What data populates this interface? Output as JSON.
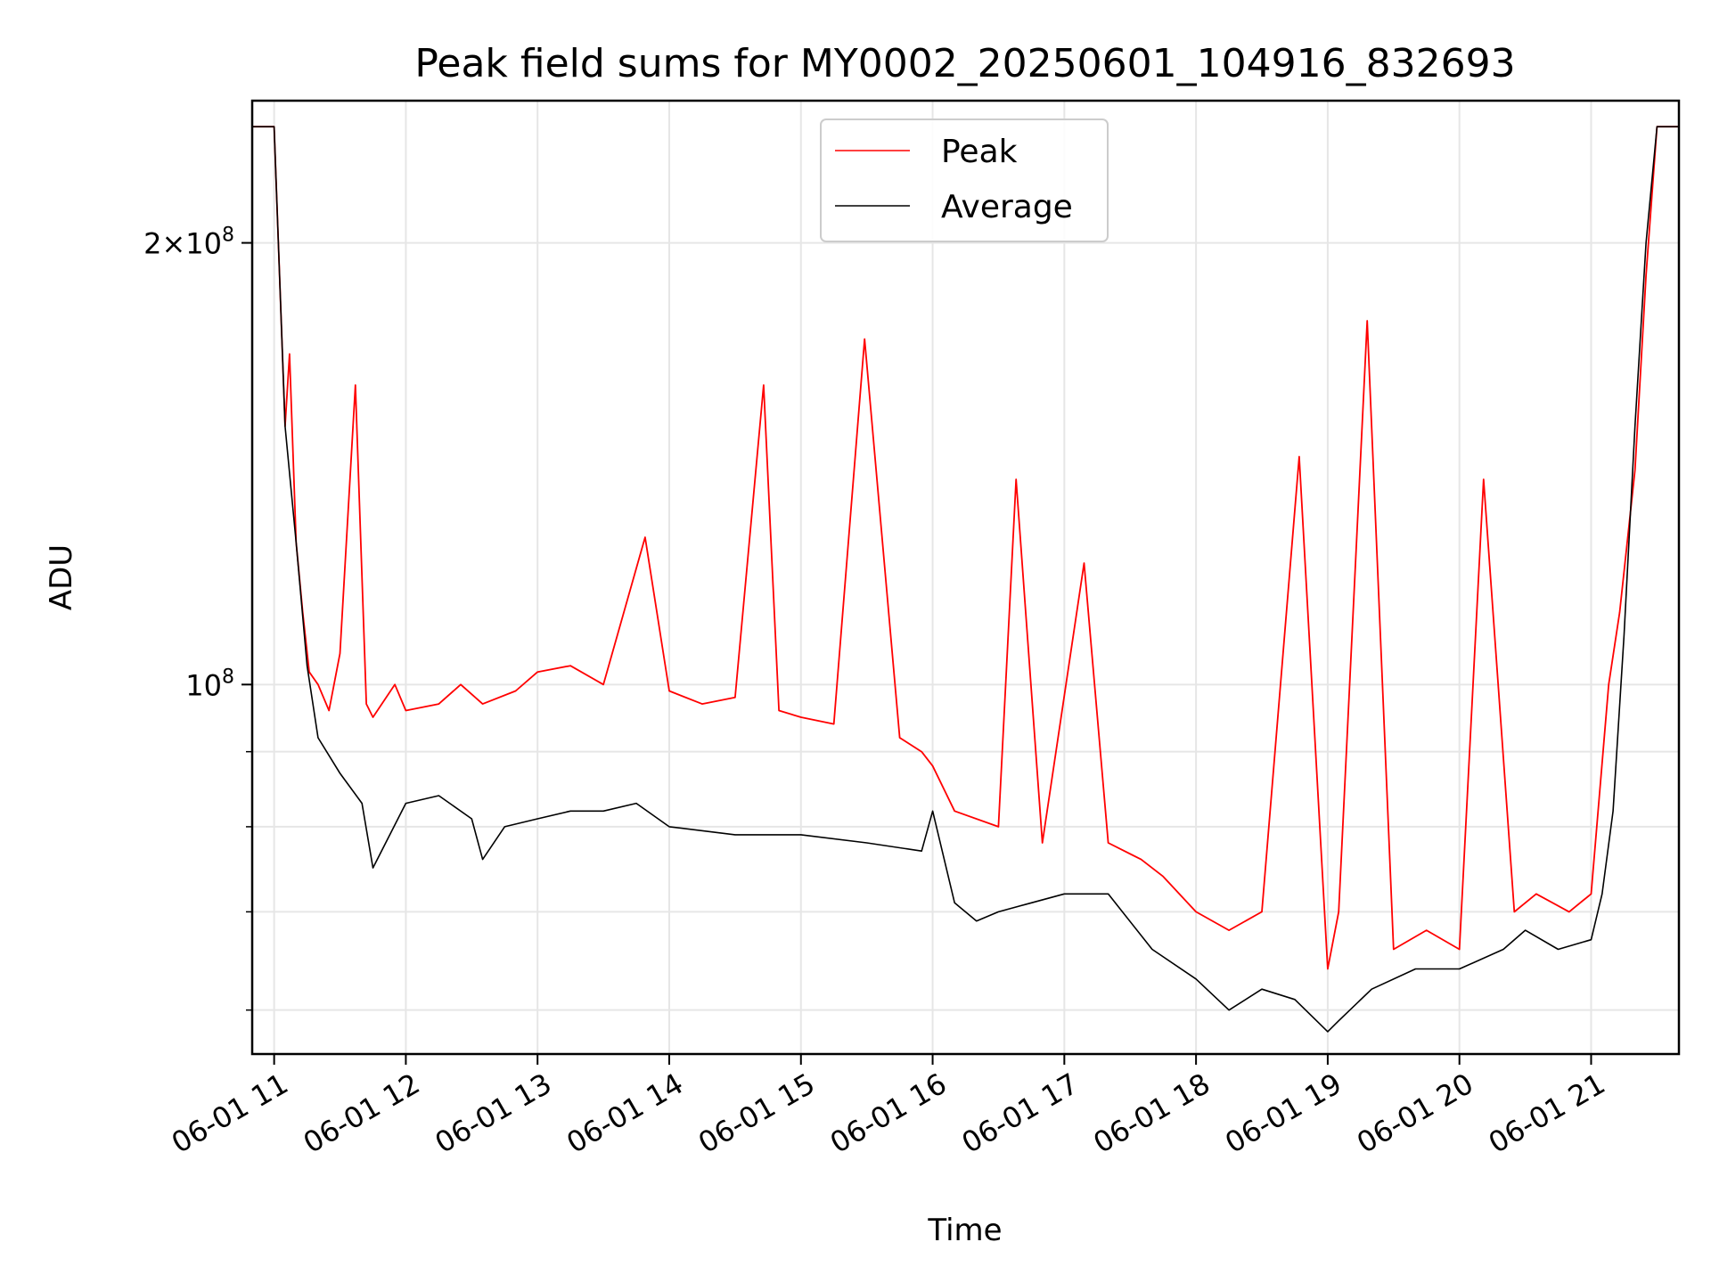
{
  "chart_data": {
    "type": "line",
    "title": "Peak field sums for MY0002_20250601_104916_832693",
    "xlabel": "Time",
    "ylabel": "ADU",
    "x_scale": "time",
    "y_scale": "log",
    "xlim": [
      "2025-06-01 10:50",
      "2025-06-01 21:40"
    ],
    "ylim": [
      56000000,
      250000000
    ],
    "grid": true,
    "legend_position": "top-center",
    "x_ticks": [
      {
        "value": "2025-06-01 11:00",
        "label": "06-01 11"
      },
      {
        "value": "2025-06-01 12:00",
        "label": "06-01 12"
      },
      {
        "value": "2025-06-01 13:00",
        "label": "06-01 13"
      },
      {
        "value": "2025-06-01 14:00",
        "label": "06-01 14"
      },
      {
        "value": "2025-06-01 15:00",
        "label": "06-01 15"
      },
      {
        "value": "2025-06-01 16:00",
        "label": "06-01 16"
      },
      {
        "value": "2025-06-01 17:00",
        "label": "06-01 17"
      },
      {
        "value": "2025-06-01 18:00",
        "label": "06-01 18"
      },
      {
        "value": "2025-06-01 19:00",
        "label": "06-01 19"
      },
      {
        "value": "2025-06-01 20:00",
        "label": "06-01 20"
      },
      {
        "value": "2025-06-01 21:00",
        "label": "06-01 21"
      }
    ],
    "y_major_ticks": [
      {
        "value": 100000000,
        "mantissa": "",
        "exponent": "8"
      },
      {
        "value": 200000000,
        "mantissa": "2",
        "exponent": "8"
      }
    ],
    "y_minor_ticks": [
      60000000,
      70000000,
      80000000,
      90000000
    ],
    "series": [
      {
        "name": "Peak",
        "color": "#ff0000",
        "x": [
          "2025-06-01 10:50",
          "2025-06-01 11:00",
          "2025-06-01 11:05",
          "2025-06-01 11:07",
          "2025-06-01 11:10",
          "2025-06-01 11:13",
          "2025-06-01 11:16",
          "2025-06-01 11:20",
          "2025-06-01 11:25",
          "2025-06-01 11:30",
          "2025-06-01 11:37",
          "2025-06-01 11:42",
          "2025-06-01 11:45",
          "2025-06-01 11:55",
          "2025-06-01 12:00",
          "2025-06-01 12:15",
          "2025-06-01 12:25",
          "2025-06-01 12:35",
          "2025-06-01 12:50",
          "2025-06-01 13:00",
          "2025-06-01 13:15",
          "2025-06-01 13:30",
          "2025-06-01 13:49",
          "2025-06-01 14:00",
          "2025-06-01 14:15",
          "2025-06-01 14:30",
          "2025-06-01 14:43",
          "2025-06-01 14:50",
          "2025-06-01 15:00",
          "2025-06-01 15:15",
          "2025-06-01 15:29",
          "2025-06-01 15:45",
          "2025-06-01 15:55",
          "2025-06-01 16:00",
          "2025-06-01 16:10",
          "2025-06-01 16:30",
          "2025-06-01 16:38",
          "2025-06-01 16:50",
          "2025-06-01 17:09",
          "2025-06-01 17:20",
          "2025-06-01 17:35",
          "2025-06-01 17:45",
          "2025-06-01 18:00",
          "2025-06-01 18:15",
          "2025-06-01 18:30",
          "2025-06-01 18:47",
          "2025-06-01 19:00",
          "2025-06-01 19:05",
          "2025-06-01 19:18",
          "2025-06-01 19:30",
          "2025-06-01 19:45",
          "2025-06-01 20:00",
          "2025-06-01 20:11",
          "2025-06-01 20:25",
          "2025-06-01 20:35",
          "2025-06-01 20:50",
          "2025-06-01 21:00",
          "2025-06-01 21:08",
          "2025-06-01 21:13",
          "2025-06-01 21:20",
          "2025-06-01 21:25",
          "2025-06-01 21:30",
          "2025-06-01 21:40"
        ],
        "values": [
          240000000,
          240000000,
          150000000,
          168000000,
          125000000,
          112000000,
          102000000,
          100000000,
          96000000,
          105000000,
          160000000,
          97000000,
          95000000,
          100000000,
          96000000,
          97000000,
          100000000,
          97000000,
          99000000,
          102000000,
          103000000,
          100000000,
          126000000,
          99000000,
          97000000,
          98000000,
          160000000,
          96000000,
          95000000,
          94000000,
          172000000,
          92000000,
          90000000,
          88000000,
          82000000,
          80000000,
          138000000,
          78000000,
          121000000,
          78000000,
          76000000,
          74000000,
          70000000,
          68000000,
          70000000,
          143000000,
          64000000,
          70000000,
          177000000,
          66000000,
          68000000,
          66000000,
          138000000,
          70000000,
          72000000,
          70000000,
          72000000,
          100000000,
          112000000,
          140000000,
          190000000,
          240000000,
          240000000
        ]
      },
      {
        "name": "Average",
        "color": "#000000",
        "x": [
          "2025-06-01 10:50",
          "2025-06-01 11:00",
          "2025-06-01 11:05",
          "2025-06-01 11:10",
          "2025-06-01 11:15",
          "2025-06-01 11:20",
          "2025-06-01 11:30",
          "2025-06-01 11:40",
          "2025-06-01 11:45",
          "2025-06-01 12:00",
          "2025-06-01 12:15",
          "2025-06-01 12:30",
          "2025-06-01 12:35",
          "2025-06-01 12:45",
          "2025-06-01 13:00",
          "2025-06-01 13:15",
          "2025-06-01 13:30",
          "2025-06-01 13:45",
          "2025-06-01 14:00",
          "2025-06-01 14:30",
          "2025-06-01 15:00",
          "2025-06-01 15:30",
          "2025-06-01 15:55",
          "2025-06-01 16:00",
          "2025-06-01 16:10",
          "2025-06-01 16:20",
          "2025-06-01 16:30",
          "2025-06-01 16:45",
          "2025-06-01 17:00",
          "2025-06-01 17:20",
          "2025-06-01 17:40",
          "2025-06-01 18:00",
          "2025-06-01 18:15",
          "2025-06-01 18:30",
          "2025-06-01 18:45",
          "2025-06-01 19:00",
          "2025-06-01 19:05",
          "2025-06-01 19:20",
          "2025-06-01 19:40",
          "2025-06-01 20:00",
          "2025-06-01 20:20",
          "2025-06-01 20:30",
          "2025-06-01 20:45",
          "2025-06-01 21:00",
          "2025-06-01 21:05",
          "2025-06-01 21:10",
          "2025-06-01 21:15",
          "2025-06-01 21:20",
          "2025-06-01 21:25",
          "2025-06-01 21:30",
          "2025-06-01 21:40"
        ],
        "values": [
          240000000,
          240000000,
          150000000,
          125000000,
          103000000,
          92000000,
          87000000,
          83000000,
          75000000,
          83000000,
          84000000,
          81000000,
          76000000,
          80000000,
          81000000,
          82000000,
          82000000,
          83000000,
          80000000,
          79000000,
          79000000,
          78000000,
          77000000,
          82000000,
          71000000,
          69000000,
          70000000,
          71000000,
          72000000,
          72000000,
          66000000,
          63000000,
          60000000,
          62000000,
          61000000,
          58000000,
          59000000,
          62000000,
          64000000,
          64000000,
          66000000,
          68000000,
          66000000,
          67000000,
          72000000,
          82000000,
          108000000,
          150000000,
          200000000,
          240000000,
          240000000
        ]
      }
    ]
  }
}
